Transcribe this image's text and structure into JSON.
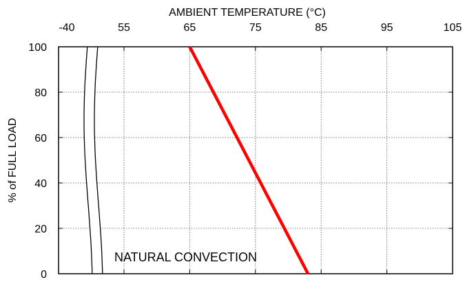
{
  "chart_data": {
    "type": "line",
    "title": "",
    "xlabel": "AMBIENT TEMPERATURE (°C)",
    "ylabel": "% of FULL LOAD",
    "x_axis_position": "top",
    "x_axis_break": "between -40 and 55",
    "xticks": [
      "-40",
      "55",
      "65",
      "75",
      "85",
      "95",
      "105"
    ],
    "yticks": [
      "0",
      "20",
      "40",
      "60",
      "80",
      "100"
    ],
    "xlim": [
      50,
      105
    ],
    "ylim": [
      0,
      100
    ],
    "grid": true,
    "series": [
      {
        "color": "#ff0000",
        "x": [
          65,
          83
        ],
        "y": [
          100,
          0
        ]
      }
    ],
    "annotations": [
      {
        "text": "NATURAL CONVECTION"
      }
    ]
  }
}
